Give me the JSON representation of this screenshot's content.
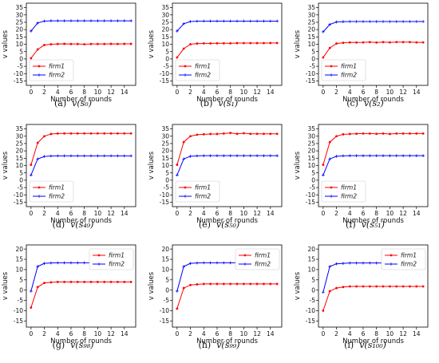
{
  "chart_data": [
    {
      "type": "line",
      "caption": "(a)",
      "caption_math": "v(s₀)",
      "x": [
        0,
        1,
        2,
        3,
        4,
        5,
        6,
        7,
        8,
        9,
        10,
        11,
        12,
        13,
        14,
        15
      ],
      "xlabel": "Number of rounds",
      "ylabel": "v values",
      "xlim": [
        -0.7,
        15.7
      ],
      "ylim": [
        -18,
        38
      ],
      "xticks": [
        0,
        2,
        4,
        6,
        8,
        10,
        12,
        14
      ],
      "yticks": [
        -15,
        -10,
        -5,
        0,
        5,
        10,
        15,
        20,
        25,
        30,
        35
      ],
      "grid": false,
      "legend": "lower-left",
      "series": [
        {
          "name": "firm1",
          "color": "#ff0000",
          "marker": "dot",
          "values": [
            0.5,
            6.5,
            9.5,
            10,
            10.2,
            10.3,
            10.2,
            10.2,
            10,
            10.2,
            10.2,
            10.2,
            10.3,
            10.2,
            10.3,
            10.3
          ]
        },
        {
          "name": "firm2",
          "color": "#0000ff",
          "marker": "plus",
          "values": [
            19,
            24.5,
            25.8,
            26,
            26,
            26,
            26,
            26,
            26,
            26,
            26,
            26,
            26,
            26,
            26,
            26
          ]
        }
      ]
    },
    {
      "type": "line",
      "caption": "(b)",
      "caption_math": "v(s₁)",
      "x": [
        0,
        1,
        2,
        3,
        4,
        5,
        6,
        7,
        8,
        9,
        10,
        11,
        12,
        13,
        14,
        15
      ],
      "xlabel": "Number of rounds",
      "ylabel": "v values",
      "xlim": [
        -0.7,
        15.7
      ],
      "ylim": [
        -18,
        38
      ],
      "xticks": [
        0,
        2,
        4,
        6,
        8,
        10,
        12,
        14
      ],
      "yticks": [
        -15,
        -10,
        -5,
        0,
        5,
        10,
        15,
        20,
        25,
        30,
        35
      ],
      "grid": false,
      "legend": "lower-left",
      "series": [
        {
          "name": "firm1",
          "color": "#ff0000",
          "marker": "dot",
          "values": [
            1,
            7,
            10,
            10.5,
            10.6,
            10.6,
            10.7,
            10.7,
            10.7,
            10.8,
            10.8,
            10.8,
            10.8,
            10.8,
            10.9,
            10.9
          ]
        },
        {
          "name": "firm2",
          "color": "#0000ff",
          "marker": "plus",
          "values": [
            19,
            24,
            25.5,
            25.7,
            25.8,
            25.8,
            25.8,
            25.8,
            25.8,
            25.8,
            25.8,
            25.8,
            25.8,
            25.8,
            25.8,
            25.8
          ]
        }
      ]
    },
    {
      "type": "line",
      "caption": "(c)",
      "caption_math": "v(s₂)",
      "x": [
        0,
        1,
        2,
        3,
        4,
        5,
        6,
        7,
        8,
        9,
        10,
        11,
        12,
        13,
        14,
        15
      ],
      "xlabel": "Number of rounds",
      "ylabel": "v values",
      "xlim": [
        -0.7,
        15.7
      ],
      "ylim": [
        -18,
        38
      ],
      "xticks": [
        0,
        2,
        4,
        6,
        8,
        10,
        12,
        14
      ],
      "yticks": [
        -15,
        -10,
        -5,
        0,
        5,
        10,
        15,
        20,
        25,
        30,
        35
      ],
      "grid": false,
      "legend": "lower-left",
      "series": [
        {
          "name": "firm1",
          "color": "#ff0000",
          "marker": "dot",
          "values": [
            1,
            7.5,
            10.5,
            11,
            11.3,
            11.2,
            11.3,
            11.5,
            11.2,
            11.5,
            11.3,
            11.5,
            11.5,
            11.5,
            11.3,
            11.3
          ]
        },
        {
          "name": "firm2",
          "color": "#0000ff",
          "marker": "plus",
          "values": [
            18.5,
            23.5,
            25.2,
            25.4,
            25.5,
            25.5,
            25.5,
            25.5,
            25.5,
            25.5,
            25.5,
            25.5,
            25.5,
            25.5,
            25.5,
            25.5
          ]
        }
      ]
    },
    {
      "type": "line",
      "caption": "(d)",
      "caption_math": "v(s₄₉)",
      "x": [
        0,
        1,
        2,
        3,
        4,
        5,
        6,
        7,
        8,
        9,
        10,
        11,
        12,
        13,
        14,
        15
      ],
      "xlabel": "Number of rounds",
      "ylabel": "v values",
      "xlim": [
        -0.7,
        15.7
      ],
      "ylim": [
        -18,
        38
      ],
      "xticks": [
        0,
        2,
        4,
        6,
        8,
        10,
        12,
        14
      ],
      "yticks": [
        -15,
        -10,
        -5,
        0,
        5,
        10,
        15,
        20,
        25,
        30,
        35
      ],
      "grid": false,
      "legend": "lower-left",
      "series": [
        {
          "name": "firm1",
          "color": "#ff0000",
          "marker": "dot",
          "values": [
            10.5,
            25.5,
            30,
            31.5,
            31.8,
            31.9,
            31.9,
            31.9,
            31.9,
            31.9,
            31.9,
            31.9,
            31.9,
            31.9,
            31.9,
            31.9
          ]
        },
        {
          "name": "firm2",
          "color": "#0000ff",
          "marker": "plus",
          "values": [
            3.5,
            14.5,
            16.2,
            16.5,
            16.6,
            16.6,
            16.6,
            16.6,
            16.6,
            16.6,
            16.6,
            16.6,
            16.6,
            16.6,
            16.6,
            16.6
          ]
        }
      ]
    },
    {
      "type": "line",
      "caption": "(e)",
      "caption_math": "v(s₅₀)",
      "x": [
        0,
        1,
        2,
        3,
        4,
        5,
        6,
        7,
        8,
        9,
        10,
        11,
        12,
        13,
        14,
        15
      ],
      "xlabel": "Number of rounds",
      "ylabel": "v values",
      "xlim": [
        -0.7,
        15.7
      ],
      "ylim": [
        -18,
        38
      ],
      "xticks": [
        0,
        2,
        4,
        6,
        8,
        10,
        12,
        14
      ],
      "yticks": [
        -15,
        -10,
        -5,
        0,
        5,
        10,
        15,
        20,
        25,
        30,
        35
      ],
      "grid": false,
      "legend": "lower-left",
      "series": [
        {
          "name": "firm1",
          "color": "#ff0000",
          "marker": "dot",
          "values": [
            10.5,
            26,
            30,
            31,
            31.3,
            31.5,
            31.5,
            31.8,
            32.2,
            31.6,
            32,
            31.6,
            31.6,
            31.6,
            31.6,
            31.6
          ]
        },
        {
          "name": "firm2",
          "color": "#0000ff",
          "marker": "plus",
          "values": [
            3.5,
            14.5,
            16.3,
            16.6,
            16.7,
            16.7,
            16.7,
            16.7,
            16.7,
            16.7,
            16.7,
            16.7,
            16.7,
            16.7,
            16.7,
            16.7
          ]
        }
      ]
    },
    {
      "type": "line",
      "caption": "(f)",
      "caption_math": "v(s₅₁)",
      "x": [
        0,
        1,
        2,
        3,
        4,
        5,
        6,
        7,
        8,
        9,
        10,
        11,
        12,
        13,
        14,
        15
      ],
      "xlabel": "Number of rounds",
      "ylabel": "v values",
      "xlim": [
        -0.7,
        15.7
      ],
      "ylim": [
        -18,
        38
      ],
      "xticks": [
        0,
        2,
        4,
        6,
        8,
        10,
        12,
        14
      ],
      "yticks": [
        -15,
        -10,
        -5,
        0,
        5,
        10,
        15,
        20,
        25,
        30,
        35
      ],
      "grid": false,
      "legend": "lower-left",
      "series": [
        {
          "name": "firm1",
          "color": "#ff0000",
          "marker": "dot",
          "values": [
            10.5,
            26,
            30,
            31.3,
            31.5,
            31.7,
            31.8,
            31.8,
            31.6,
            31.8,
            31.5,
            31.8,
            31.8,
            31.8,
            31.8,
            31.8
          ]
        },
        {
          "name": "firm2",
          "color": "#0000ff",
          "marker": "plus",
          "values": [
            3.5,
            14.5,
            16.3,
            16.6,
            16.7,
            16.7,
            16.7,
            16.7,
            16.7,
            16.7,
            16.7,
            16.7,
            16.7,
            16.7,
            16.7,
            16.7
          ]
        }
      ]
    },
    {
      "type": "line",
      "caption": "(g)",
      "caption_math": "v(s₉₈)",
      "x": [
        0,
        1,
        2,
        3,
        4,
        5,
        6,
        7,
        8,
        9,
        10,
        11,
        12,
        13,
        14,
        15
      ],
      "xlabel": "Number of rounds",
      "ylabel": "v values",
      "xlim": [
        -0.7,
        15.7
      ],
      "ylim": [
        -18,
        22
      ],
      "xticks": [
        0,
        2,
        4,
        6,
        8,
        10,
        12,
        14
      ],
      "yticks": [
        -15,
        -10,
        -5,
        0,
        5,
        10,
        15,
        20
      ],
      "grid": false,
      "legend": "upper-right",
      "series": [
        {
          "name": "firm1",
          "color": "#ff0000",
          "marker": "dot",
          "values": [
            -8.5,
            1.5,
            3.5,
            3.8,
            4,
            4,
            4,
            4,
            4,
            4,
            4,
            4,
            4,
            4,
            4,
            4
          ]
        },
        {
          "name": "firm2",
          "color": "#0000ff",
          "marker": "plus",
          "values": [
            -0.5,
            11.5,
            13,
            13.2,
            13.3,
            13.3,
            13.3,
            13.3,
            13.3,
            13.3,
            13.3,
            13.3,
            13.3,
            13.3,
            13.3,
            13.3
          ]
        }
      ]
    },
    {
      "type": "line",
      "caption": "(h)",
      "caption_math": "v(s₉₉)",
      "x": [
        0,
        1,
        2,
        3,
        4,
        5,
        6,
        7,
        8,
        9,
        10,
        11,
        12,
        13,
        14,
        15
      ],
      "xlabel": "Number of rounds",
      "ylabel": "v values",
      "xlim": [
        -0.7,
        15.7
      ],
      "ylim": [
        -18,
        22
      ],
      "xticks": [
        0,
        2,
        4,
        6,
        8,
        10,
        12,
        14
      ],
      "yticks": [
        -15,
        -10,
        -5,
        0,
        5,
        10,
        15,
        20
      ],
      "grid": false,
      "legend": "upper-right",
      "series": [
        {
          "name": "firm1",
          "color": "#ff0000",
          "marker": "dot",
          "values": [
            -9,
            1,
            2.5,
            2.8,
            3,
            3,
            3,
            3,
            3,
            3,
            3,
            3,
            3,
            3,
            3,
            3
          ]
        },
        {
          "name": "firm2",
          "color": "#0000ff",
          "marker": "plus",
          "values": [
            -0.5,
            11.5,
            13,
            13.2,
            13.3,
            13.3,
            13.3,
            13.3,
            13.3,
            13.3,
            13.3,
            13.3,
            13.3,
            13.3,
            13.3,
            13.3
          ]
        }
      ]
    },
    {
      "type": "line",
      "caption": "(i)",
      "caption_math": "v(s₁₀₀)",
      "x": [
        0,
        1,
        2,
        3,
        4,
        5,
        6,
        7,
        8,
        9,
        10,
        11,
        12,
        13,
        14,
        15
      ],
      "xlabel": "Number of rounds",
      "ylabel": "v values",
      "xlim": [
        -0.7,
        15.7
      ],
      "ylim": [
        -18,
        22
      ],
      "xticks": [
        0,
        2,
        4,
        6,
        8,
        10,
        12,
        14
      ],
      "yticks": [
        -15,
        -10,
        -5,
        0,
        5,
        10,
        15,
        20
      ],
      "grid": false,
      "legend": "upper-right",
      "series": [
        {
          "name": "firm1",
          "color": "#ff0000",
          "marker": "dot",
          "values": [
            -10,
            -0.5,
            1,
            1.5,
            1.8,
            1.8,
            1.8,
            1.8,
            1.8,
            1.8,
            1.8,
            1.8,
            1.8,
            1.8,
            1.8,
            1.8
          ]
        },
        {
          "name": "firm2",
          "color": "#0000ff",
          "marker": "plus",
          "values": [
            -1,
            11.5,
            12.8,
            13,
            13.2,
            13.2,
            13.2,
            13.2,
            13.2,
            13.2,
            13.2,
            13.2,
            13.2,
            13.2,
            13.2,
            13.2
          ]
        }
      ]
    }
  ]
}
